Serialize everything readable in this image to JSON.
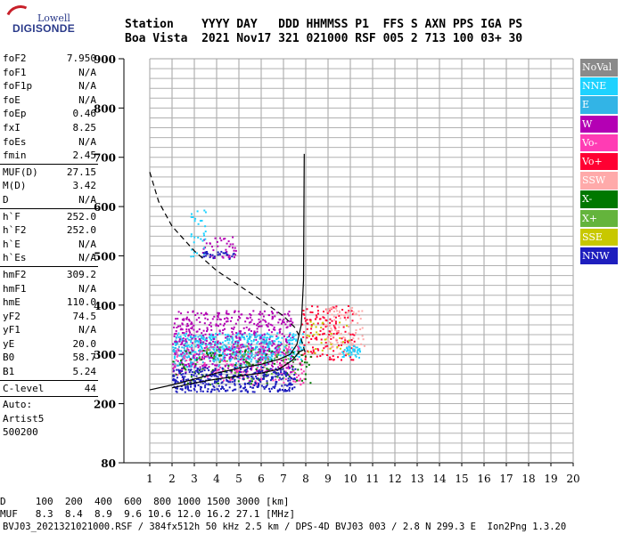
{
  "logo": {
    "top": "Lowell",
    "bottom": "DIGISONDE"
  },
  "header": {
    "line1": "Station    YYYY DAY   DDD HHMMSS P1  FFS S AXN PPS IGA PS",
    "line2": "Boa Vista  2021 Nov17 321 021000 RSF 005 2 713 100 03+ 30"
  },
  "params": {
    "group1": [
      {
        "label": "foF2",
        "value": "7.950"
      },
      {
        "label": "foF1",
        "value": "N/A"
      },
      {
        "label": "foF1p",
        "value": "N/A"
      },
      {
        "label": "foE",
        "value": "N/A"
      },
      {
        "label": "foEp",
        "value": "0.46"
      },
      {
        "label": "fxI",
        "value": "8.25"
      },
      {
        "label": "foEs",
        "value": "N/A"
      },
      {
        "label": "fmin",
        "value": "2.45"
      }
    ],
    "group2": [
      {
        "label": "MUF(D)",
        "value": "27.15"
      },
      {
        "label": "M(D)",
        "value": "3.42"
      },
      {
        "label": "D",
        "value": "N/A"
      }
    ],
    "group3": [
      {
        "label": "h`F",
        "value": "252.0"
      },
      {
        "label": "h`F2",
        "value": "252.0"
      },
      {
        "label": "h`E",
        "value": "N/A"
      },
      {
        "label": "h`Es",
        "value": "N/A"
      }
    ],
    "group4": [
      {
        "label": "hmF2",
        "value": "309.2"
      },
      {
        "label": "hmF1",
        "value": "N/A"
      },
      {
        "label": "hmE",
        "value": "110.0"
      },
      {
        "label": "yF2",
        "value": "74.5"
      },
      {
        "label": "yF1",
        "value": "N/A"
      },
      {
        "label": "yE",
        "value": "20.0"
      },
      {
        "label": "B0",
        "value": "58.7"
      },
      {
        "label": "B1",
        "value": "5.24"
      }
    ],
    "group5": [
      {
        "label": "C-level",
        "value": "44"
      }
    ],
    "auto": [
      "Auto:",
      "Artist5",
      "500200"
    ]
  },
  "legend": [
    {
      "label": "NoVal",
      "color": "#8a8a8a"
    },
    {
      "label": "NNE",
      "color": "#1ed2ff"
    },
    {
      "label": "E",
      "color": "#32b4e6"
    },
    {
      "label": "W",
      "color": "#b400b4"
    },
    {
      "label": "Vo-",
      "color": "#ff3cb4"
    },
    {
      "label": "Vo+",
      "color": "#ff0032"
    },
    {
      "label": "SSW",
      "color": "#ffaaaa"
    },
    {
      "label": "X-",
      "color": "#007800"
    },
    {
      "label": "X+",
      "color": "#64b43c"
    },
    {
      "label": "SSE",
      "color": "#c8c800"
    },
    {
      "label": "NNW",
      "color": "#1e1ebe"
    }
  ],
  "bottom": {
    "d_line": "D     100  200  400  600  800 1000 1500 3000 [km]",
    "muf_line": "MUF   8.3  8.4  8.9  9.6 10.6 12.0 16.2 27.1 [MHz]"
  },
  "footer": "BVJ03_2021321021000.RSF / 384fx512h 50 kHz 2.5 km / DPS-4D BVJ03 003 / 2.8 N 299.3 E  Ion2Png 1.3.20",
  "chart_data": {
    "type": "scatter",
    "xlim": [
      1,
      20
    ],
    "ylim": [
      80,
      900
    ],
    "x_ticks": [
      "1",
      "2",
      "3",
      "4",
      "5",
      "6",
      "7",
      "8",
      "9",
      "10",
      "11",
      "12",
      "13",
      "14",
      "15",
      "16",
      "17",
      "18",
      "19",
      "20"
    ],
    "y_ticks": [
      {
        "value": 900,
        "label": "900"
      },
      {
        "value": 800,
        "label": "800"
      },
      {
        "value": 700,
        "label": "700"
      },
      {
        "value": 600,
        "label": "600"
      },
      {
        "value": 500,
        "label": "500"
      },
      {
        "value": 400,
        "label": "400"
      },
      {
        "value": 300,
        "label": "300"
      },
      {
        "value": 200,
        "label": "200"
      },
      {
        "value": 80,
        "label": "80"
      }
    ],
    "grid": true,
    "xlabel": "",
    "ylabel": "",
    "traces": [
      {
        "name": "virtual height trace",
        "points": [
          [
            1.0,
            228
          ],
          [
            2.0,
            238
          ],
          [
            3.0,
            250
          ],
          [
            4.0,
            262
          ],
          [
            5.0,
            272
          ],
          [
            6.0,
            280
          ],
          [
            6.8,
            290
          ],
          [
            7.3,
            300
          ],
          [
            7.6,
            320
          ],
          [
            7.8,
            360
          ],
          [
            7.9,
            450
          ],
          [
            7.93,
            707
          ]
        ]
      },
      {
        "name": "profile",
        "points": [
          [
            2.0,
            232
          ],
          [
            3.0,
            242
          ],
          [
            4.0,
            250
          ],
          [
            5.0,
            256
          ],
          [
            6.0,
            262
          ],
          [
            6.8,
            270
          ],
          [
            7.4,
            288
          ],
          [
            7.7,
            305
          ],
          [
            7.9,
            309
          ]
        ]
      },
      {
        "name": "MUF curve",
        "points": [
          [
            1.0,
            670
          ],
          [
            1.4,
            610
          ],
          [
            2.0,
            560
          ],
          [
            3.0,
            510
          ],
          [
            4.0,
            470
          ],
          [
            5.0,
            440
          ],
          [
            6.0,
            410
          ],
          [
            7.0,
            378
          ],
          [
            7.5,
            355
          ],
          [
            7.8,
            330
          ],
          [
            8.0,
            300
          ]
        ]
      }
    ],
    "clusters": [
      {
        "legend": "NNE",
        "x": [
          2.0,
          7.9
        ],
        "y": [
          290,
          345
        ],
        "n": 420
      },
      {
        "legend": "E",
        "x": [
          2.0,
          6.5
        ],
        "y": [
          275,
          340
        ],
        "n": 260
      },
      {
        "legend": "W",
        "x": [
          2.0,
          7.4
        ],
        "y": [
          265,
          390
        ],
        "n": 520
      },
      {
        "legend": "Vo-",
        "x": [
          2.0,
          7.9
        ],
        "y": [
          240,
          320
        ],
        "n": 200
      },
      {
        "legend": "Vo+",
        "x": [
          7.8,
          10.2
        ],
        "y": [
          290,
          400
        ],
        "n": 150
      },
      {
        "legend": "SSW",
        "x": [
          8.8,
          10.6
        ],
        "y": [
          300,
          400
        ],
        "n": 90
      },
      {
        "legend": "X-",
        "x": [
          2.0,
          8.2
        ],
        "y": [
          240,
          310
        ],
        "n": 130
      },
      {
        "legend": "X+",
        "x": [
          3.0,
          7.5
        ],
        "y": [
          250,
          320
        ],
        "n": 60
      },
      {
        "legend": "SSE",
        "x": [
          8.0,
          10.0
        ],
        "y": [
          300,
          370
        ],
        "n": 30
      },
      {
        "legend": "NNW",
        "x": [
          2.0,
          7.5
        ],
        "y": [
          225,
          275
        ],
        "n": 380
      },
      {
        "legend": "NNE",
        "x": [
          9.6,
          10.4
        ],
        "y": [
          295,
          320
        ],
        "n": 40
      },
      {
        "legend": "W",
        "x": [
          3.3,
          4.9
        ],
        "y": [
          495,
          540
        ],
        "n": 40
      },
      {
        "legend": "NNE",
        "x": [
          2.8,
          3.5
        ],
        "y": [
          500,
          600
        ],
        "n": 30
      },
      {
        "legend": "NNW",
        "x": [
          3.3,
          4.9
        ],
        "y": [
          495,
          510
        ],
        "n": 30
      }
    ]
  }
}
